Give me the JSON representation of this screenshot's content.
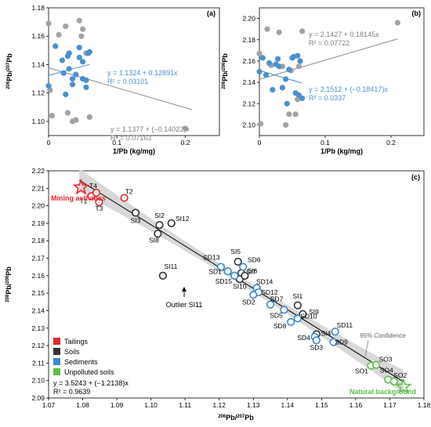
{
  "chart_data": [
    {
      "panel": "(a)",
      "type": "scatter",
      "ylabel": "206Pb/207Pb",
      "xlabel": "1/Pb (kg/mg)",
      "xlim": [
        0,
        0.25
      ],
      "ylim": [
        1.09,
        1.18
      ],
      "xticks": [
        "0",
        "0.1",
        "0.2"
      ],
      "yticks": [
        "1.10",
        "1.12",
        "1.14",
        "1.16",
        "1.18"
      ],
      "series": [
        {
          "name": "Soils",
          "color": "#a3a3a3",
          "x": [
            0.0,
            0.002,
            0.005,
            0.015,
            0.025,
            0.028,
            0.035,
            0.045,
            0.048,
            0.05,
            0.055,
            0.06,
            0.04,
            0.2
          ],
          "y": [
            1.169,
            1.122,
            1.104,
            1.161,
            1.167,
            1.106,
            1.1,
            1.171,
            1.16,
            1.165,
            1.148,
            1.103,
            1.101,
            1.095
          ]
        },
        {
          "name": "Sediments",
          "color": "#4a90d0",
          "x": [
            0.0,
            0.01,
            0.02,
            0.022,
            0.025,
            0.028,
            0.03,
            0.03,
            0.035,
            0.04,
            0.045,
            0.045,
            0.05,
            0.05,
            0.055,
            0.055,
            0.058,
            0.06,
            0.035
          ],
          "y": [
            1.125,
            1.153,
            1.143,
            1.134,
            1.119,
            1.146,
            1.148,
            1.137,
            1.126,
            1.133,
            1.145,
            1.152,
            1.142,
            1.13,
            1.129,
            1.124,
            1.148,
            1.149,
            1.13
          ]
        }
      ],
      "fits": [
        {
          "label": "y = 1.1324 + 0.12891x",
          "r2": "R² = 0.03101",
          "intercept": 1.1324,
          "slope": 0.12891,
          "xrange": [
            0.0,
            0.06
          ],
          "color": "#4a90d0"
        },
        {
          "label": "y = 1.1377 + (−0.14022)x",
          "r2": "R² = 0.07163",
          "intercept": 1.1377,
          "slope": -0.14022,
          "xrange": [
            0.0,
            0.21
          ],
          "color": "#8c8c8c"
        }
      ]
    },
    {
      "panel": "(b)",
      "type": "scatter",
      "ylabel": "208Pb/206Pb",
      "xlabel": "1/Pb (kg/mg)",
      "xlim": [
        0,
        0.25
      ],
      "ylim": [
        2.09,
        2.21
      ],
      "xticks": [
        "0",
        "0.1",
        "0.2"
      ],
      "yticks": [
        "2.10",
        "2.12",
        "2.14",
        "2.16",
        "2.18",
        "2.20"
      ],
      "series": [
        {
          "name": "Soils",
          "color": "#a3a3a3",
          "x": [
            0.0,
            0.002,
            0.012,
            0.018,
            0.03,
            0.035,
            0.04,
            0.045,
            0.048,
            0.055,
            0.058,
            0.06,
            0.065,
            0.21
          ],
          "y": [
            2.167,
            2.101,
            2.19,
            2.156,
            2.187,
            2.155,
            2.1,
            2.11,
            2.151,
            2.11,
            2.124,
            2.155,
            2.188,
            2.196
          ]
        },
        {
          "name": "Sediments",
          "color": "#4a90d0",
          "x": [
            0.0,
            0.005,
            0.01,
            0.015,
            0.02,
            0.025,
            0.028,
            0.03,
            0.035,
            0.04,
            0.042,
            0.045,
            0.05,
            0.052,
            0.055,
            0.058,
            0.06,
            0.062,
            0.065
          ],
          "y": [
            2.15,
            2.163,
            2.147,
            2.158,
            2.133,
            2.157,
            2.162,
            2.155,
            2.135,
            2.143,
            2.12,
            2.152,
            2.163,
            2.164,
            2.13,
            2.165,
            2.128,
            2.16,
            2.125
          ]
        }
      ],
      "fits": [
        {
          "label": "y = 2.1427 + 0.18145x",
          "r2": "R² = 0.07722",
          "intercept": 2.1427,
          "slope": 0.18145,
          "xrange": [
            0.0,
            0.21
          ],
          "color": "#8c8c8c"
        },
        {
          "label": "y = 2.1512 + (−0.18417)x",
          "r2": "R² = 0.0337",
          "intercept": 2.1512,
          "slope": -0.18417,
          "xrange": [
            0.0,
            0.065
          ],
          "color": "#4a90d0"
        }
      ]
    },
    {
      "panel": "(c)",
      "type": "scatter",
      "xlabel": "206Pb/207Pb",
      "ylabel": "208Pb/206Pb",
      "xlim": [
        1.07,
        1.18
      ],
      "ylim": [
        2.09,
        2.22
      ],
      "xticks": [
        "1.07",
        "1.08",
        "1.09",
        "1.10",
        "1.11",
        "1.12",
        "1.13",
        "1.14",
        "1.15",
        "1.16",
        "1.17",
        "1.18"
      ],
      "yticks": [
        "2.09",
        "2.10",
        "2.11",
        "2.12",
        "2.13",
        "2.14",
        "2.15",
        "2.16",
        "2.17",
        "2.18",
        "2.19",
        "2.20",
        "2.21",
        "2.22"
      ],
      "legend": [
        {
          "name": "Tailings",
          "color": "#e8262d"
        },
        {
          "name": "Soils",
          "color": "#333333"
        },
        {
          "name": "Sediments",
          "color": "#3d88d0"
        },
        {
          "name": "Unpolluted soils",
          "color": "#5cc04a"
        }
      ],
      "fit": {
        "label": "y = 3.5243 + (−1.2138)x",
        "r2": "R² = 0.9639",
        "intercept": 3.5243,
        "slope": -1.2138,
        "xrange": [
          1.079,
          1.174
        ]
      },
      "confidence_label": "95% Confidence",
      "series": [
        {
          "name": "Tailings",
          "color": "#e8262d",
          "points": [
            {
              "id": "T1",
              "x": 1.0825,
              "y": 2.2055,
              "lx": -10,
              "ly": 9
            },
            {
              "id": "T4",
              "x": 1.084,
              "y": 2.2075,
              "lx": -4,
              "ly": -6
            },
            {
              "id": "T3",
              "x": 1.0848,
              "y": 2.202,
              "lx": 0,
              "ly": 11
            },
            {
              "id": "T2",
              "x": 1.0922,
              "y": 2.2045,
              "lx": 6,
              "ly": -5
            }
          ]
        },
        {
          "name": "Soils",
          "color": "#333333",
          "points": [
            {
              "id": "SI3",
              "x": 1.0955,
              "y": 2.196,
              "lx": 0,
              "ly": 13
            },
            {
              "id": "SI2",
              "x": 1.1025,
              "y": 2.189,
              "lx": 0,
              "ly": -9
            },
            {
              "id": "SI12",
              "x": 1.106,
              "y": 2.19,
              "lx": 14,
              "ly": -3
            },
            {
              "id": "SI8",
              "x": 1.102,
              "y": 2.184,
              "lx": -5,
              "ly": 11
            },
            {
              "id": "SI11",
              "x": 1.1035,
              "y": 2.16,
              "lx": 10,
              "ly": -9
            },
            {
              "id": "SI5",
              "x": 1.1255,
              "y": 2.168,
              "lx": -3,
              "ly": -10
            },
            {
              "id": "SI6",
              "x": 1.1265,
              "y": 2.1615,
              "lx": 14,
              "ly": 0
            },
            {
              "id": "SI10",
              "x": 1.126,
              "y": 2.158,
              "lx": 0,
              "ly": 12
            },
            {
              "id": "SI7",
              "x": 1.1275,
              "y": 2.16,
              "lx": 8,
              "ly": -2
            },
            {
              "id": "SI1",
              "x": 1.143,
              "y": 2.143,
              "lx": 0,
              "ly": -9
            },
            {
              "id": "SI9",
              "x": 1.1445,
              "y": 2.138,
              "lx": 14,
              "ly": 0
            },
            {
              "id": "SI4",
              "x": 1.1485,
              "y": 2.1265,
              "lx": 12,
              "ly": 2
            }
          ]
        },
        {
          "name": "Sediments",
          "color": "#3d88d0",
          "points": [
            {
              "id": "SD13",
              "x": 1.1205,
              "y": 2.165,
              "lx": -12,
              "ly": -9
            },
            {
              "id": "SD1",
              "x": 1.1225,
              "y": 2.1625,
              "lx": -16,
              "ly": 3
            },
            {
              "id": "SD6",
              "x": 1.127,
              "y": 2.165,
              "lx": 14,
              "ly": -6
            },
            {
              "id": "SD15",
              "x": 1.1245,
              "y": 2.16,
              "lx": -14,
              "ly": 10
            },
            {
              "id": "SD14",
              "x": 1.131,
              "y": 2.153,
              "lx": 10,
              "ly": -5
            },
            {
              "id": "SD12",
              "x": 1.1315,
              "y": 2.1505,
              "lx": 14,
              "ly": 3
            },
            {
              "id": "SD2",
              "x": 1.13,
              "y": 2.149,
              "lx": -6,
              "ly": 12
            },
            {
              "id": "SD7",
              "x": 1.135,
              "y": 2.1435,
              "lx": 8,
              "ly": -4
            },
            {
              "id": "SD5",
              "x": 1.139,
              "y": 2.1405,
              "lx": -10,
              "ly": 10
            },
            {
              "id": "SD10",
              "x": 1.143,
              "y": 2.1355,
              "lx": 14,
              "ly": 0
            },
            {
              "id": "SD8",
              "x": 1.141,
              "y": 2.1335,
              "lx": -14,
              "ly": 8
            },
            {
              "id": "SD4",
              "x": 1.148,
              "y": 2.125,
              "lx": -14,
              "ly": 4
            },
            {
              "id": "SD3",
              "x": 1.1485,
              "y": 2.123,
              "lx": 0,
              "ly": 12
            },
            {
              "id": "SD11",
              "x": 1.154,
              "y": 2.128,
              "lx": 12,
              "ly": -5
            },
            {
              "id": "SD9",
              "x": 1.1535,
              "y": 2.122,
              "lx": 10,
              "ly": 3
            }
          ]
        },
        {
          "name": "Unpolluted soils",
          "color": "#5cc04a",
          "points": [
            {
              "id": "SO1",
              "x": 1.1645,
              "y": 2.1085,
              "lx": -12,
              "ly": 10
            },
            {
              "id": "SO3",
              "x": 1.166,
              "y": 2.109,
              "lx": 12,
              "ly": -4
            },
            {
              "id": "SO4",
              "x": 1.1695,
              "y": 2.1005,
              "lx": -2,
              "ly": -9
            },
            {
              "id": "SO2",
              "x": 1.1712,
              "y": 2.0995,
              "lx": 8,
              "ly": -5
            }
          ]
        }
      ],
      "annotations": [
        {
          "text": "Mining activities",
          "color": "#e8262d",
          "x": 1.0795,
          "y": 2.2105
        },
        {
          "text": "Natural background",
          "color": "#5cc04a",
          "x": 1.174,
          "y": 2.0965
        },
        {
          "text": "Outlier SI11",
          "color": "#111111",
          "x": 1.1035,
          "y": 2.16
        }
      ]
    }
  ]
}
